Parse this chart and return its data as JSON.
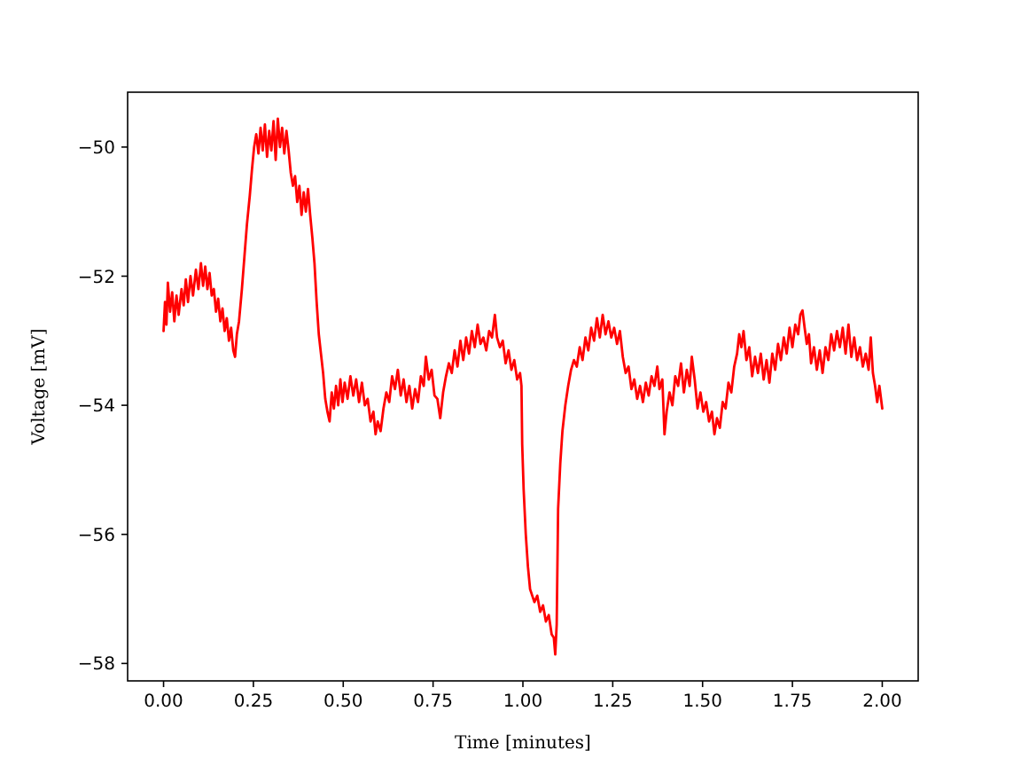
{
  "chart_data": {
    "type": "line",
    "xlabel": "Time [minutes]",
    "ylabel": "Voltage [mV]",
    "color": "#ff0000",
    "xlim": [
      -0.1,
      2.1
    ],
    "ylim": [
      -58.27,
      -49.15
    ],
    "xticks": [
      {
        "value": 0,
        "label": "0.00"
      },
      {
        "value": 0.25,
        "label": "0.25"
      },
      {
        "value": 0.5,
        "label": "0.50"
      },
      {
        "value": 0.75,
        "label": "0.75"
      },
      {
        "value": 1,
        "label": "1.00"
      },
      {
        "value": 1.25,
        "label": "1.25"
      },
      {
        "value": 1.5,
        "label": "1.50"
      },
      {
        "value": 1.75,
        "label": "1.75"
      },
      {
        "value": 2,
        "label": "2.00"
      }
    ],
    "yticks": [
      {
        "value": -58,
        "label": "−58"
      },
      {
        "value": -56,
        "label": "−56"
      },
      {
        "value": -54,
        "label": "−54"
      },
      {
        "value": -52,
        "label": "−52"
      },
      {
        "value": -50,
        "label": "−50"
      }
    ],
    "x": [
      0,
      0.004,
      0.008,
      0.012,
      0.018,
      0.024,
      0.03,
      0.036,
      0.042,
      0.05,
      0.056,
      0.062,
      0.068,
      0.075,
      0.082,
      0.09,
      0.097,
      0.104,
      0.11,
      0.116,
      0.122,
      0.128,
      0.134,
      0.14,
      0.146,
      0.152,
      0.158,
      0.164,
      0.17,
      0.176,
      0.182,
      0.188,
      0.194,
      0.199,
      0.204,
      0.21,
      0.218,
      0.225,
      0.232,
      0.24,
      0.246,
      0.252,
      0.258,
      0.264,
      0.27,
      0.276,
      0.282,
      0.288,
      0.294,
      0.3,
      0.306,
      0.312,
      0.318,
      0.324,
      0.33,
      0.336,
      0.342,
      0.348,
      0.354,
      0.36,
      0.366,
      0.372,
      0.378,
      0.384,
      0.39,
      0.396,
      0.402,
      0.408,
      0.414,
      0.42,
      0.426,
      0.432,
      0.438,
      0.444,
      0.45,
      0.456,
      0.462,
      0.468,
      0.474,
      0.48,
      0.486,
      0.492,
      0.498,
      0.504,
      0.512,
      0.52,
      0.528,
      0.536,
      0.544,
      0.552,
      0.56,
      0.568,
      0.576,
      0.584,
      0.59,
      0.596,
      0.604,
      0.612,
      0.62,
      0.628,
      0.636,
      0.644,
      0.652,
      0.66,
      0.668,
      0.676,
      0.684,
      0.692,
      0.7,
      0.708,
      0.716,
      0.724,
      0.73,
      0.738,
      0.746,
      0.754,
      0.762,
      0.77,
      0.778,
      0.786,
      0.794,
      0.802,
      0.81,
      0.818,
      0.826,
      0.834,
      0.842,
      0.85,
      0.858,
      0.866,
      0.874,
      0.882,
      0.89,
      0.898,
      0.906,
      0.914,
      0.922,
      0.928,
      0.936,
      0.944,
      0.952,
      0.96,
      0.968,
      0.976,
      0.984,
      0.992,
      0.996,
      0.998,
      1.002,
      1.008,
      1.014,
      1.02,
      1.026,
      1.032,
      1.04,
      1.048,
      1.056,
      1.064,
      1.072,
      1.08,
      1.086,
      1.09,
      1.094,
      1.098,
      1.104,
      1.11,
      1.118,
      1.126,
      1.134,
      1.142,
      1.15,
      1.158,
      1.166,
      1.174,
      1.182,
      1.19,
      1.198,
      1.206,
      1.214,
      1.222,
      1.23,
      1.238,
      1.246,
      1.254,
      1.262,
      1.27,
      1.278,
      1.286,
      1.294,
      1.302,
      1.31,
      1.318,
      1.326,
      1.334,
      1.342,
      1.35,
      1.358,
      1.366,
      1.374,
      1.38,
      1.388,
      1.394,
      1.4,
      1.408,
      1.416,
      1.424,
      1.432,
      1.44,
      1.448,
      1.456,
      1.464,
      1.47,
      1.478,
      1.486,
      1.494,
      1.502,
      1.51,
      1.518,
      1.526,
      1.533,
      1.54,
      1.548,
      1.556,
      1.564,
      1.572,
      1.58,
      1.588,
      1.596,
      1.602,
      1.608,
      1.614,
      1.622,
      1.63,
      1.638,
      1.646,
      1.654,
      1.662,
      1.67,
      1.678,
      1.686,
      1.694,
      1.702,
      1.71,
      1.718,
      1.726,
      1.734,
      1.742,
      1.75,
      1.758,
      1.766,
      1.772,
      1.778,
      1.784,
      1.79,
      1.796,
      1.802,
      1.81,
      1.818,
      1.826,
      1.834,
      1.842,
      1.85,
      1.858,
      1.866,
      1.874,
      1.882,
      1.89,
      1.898,
      1.906,
      1.914,
      1.922,
      1.93,
      1.938,
      1.946,
      1.954,
      1.962,
      1.968,
      1.974,
      1.98,
      1.986,
      1.992,
      2
    ],
    "values": [
      -52.85,
      -52.4,
      -52.75,
      -52.1,
      -52.55,
      -52.25,
      -52.7,
      -52.3,
      -52.6,
      -52.2,
      -52.45,
      -52.05,
      -52.4,
      -52,
      -52.3,
      -51.9,
      -52.2,
      -51.8,
      -52.15,
      -51.85,
      -52.2,
      -51.95,
      -52.3,
      -52.2,
      -52.55,
      -52.35,
      -52.7,
      -52.5,
      -52.85,
      -52.65,
      -53,
      -52.8,
      -53.15,
      -53.25,
      -52.9,
      -52.7,
      -52.2,
      -51.7,
      -51.2,
      -50.75,
      -50.35,
      -50,
      -49.8,
      -50.1,
      -49.7,
      -50.05,
      -49.65,
      -50.15,
      -49.75,
      -50.05,
      -49.6,
      -50.2,
      -49.56,
      -50,
      -49.7,
      -50.1,
      -49.75,
      -50.05,
      -50.4,
      -50.6,
      -50.45,
      -50.85,
      -50.6,
      -51.05,
      -50.7,
      -51,
      -50.65,
      -51.05,
      -51.4,
      -51.8,
      -52.4,
      -52.9,
      -53.2,
      -53.5,
      -53.9,
      -54.1,
      -54.25,
      -53.8,
      -54.05,
      -53.7,
      -54,
      -53.6,
      -53.95,
      -53.65,
      -53.9,
      -53.55,
      -53.85,
      -53.6,
      -53.95,
      -53.65,
      -54,
      -53.9,
      -54.25,
      -54.1,
      -54.45,
      -54.25,
      -54.4,
      -54.05,
      -53.8,
      -53.95,
      -53.55,
      -53.75,
      -53.45,
      -53.85,
      -53.6,
      -53.95,
      -53.7,
      -54.05,
      -53.75,
      -53.95,
      -53.55,
      -53.7,
      -53.25,
      -53.6,
      -53.45,
      -53.85,
      -53.9,
      -54.2,
      -53.8,
      -53.55,
      -53.35,
      -53.5,
      -53.15,
      -53.4,
      -53,
      -53.3,
      -52.95,
      -53.2,
      -52.85,
      -53.1,
      -52.75,
      -53.05,
      -52.95,
      -53.15,
      -52.85,
      -52.95,
      -52.6,
      -52.95,
      -53.1,
      -53,
      -53.35,
      -53.15,
      -53.45,
      -53.3,
      -53.6,
      -53.5,
      -53.7,
      -54.6,
      -55.3,
      -56,
      -56.5,
      -56.85,
      -56.95,
      -57.05,
      -56.95,
      -57.2,
      -57.1,
      -57.35,
      -57.25,
      -57.55,
      -57.6,
      -57.86,
      -57.4,
      -55.6,
      -54.9,
      -54.4,
      -54,
      -53.7,
      -53.45,
      -53.3,
      -53.4,
      -53.1,
      -53.3,
      -52.95,
      -53.15,
      -52.8,
      -53,
      -52.65,
      -52.95,
      -52.6,
      -52.9,
      -52.7,
      -52.95,
      -52.8,
      -53.05,
      -52.85,
      -53.25,
      -53.5,
      -53.4,
      -53.75,
      -53.6,
      -53.9,
      -53.7,
      -53.95,
      -53.65,
      -53.85,
      -53.55,
      -53.7,
      -53.4,
      -53.75,
      -53.6,
      -54.45,
      -54.1,
      -53.8,
      -54,
      -53.55,
      -53.7,
      -53.35,
      -53.8,
      -53.45,
      -53.7,
      -53.25,
      -53.6,
      -54.05,
      -53.8,
      -54.1,
      -53.95,
      -54.25,
      -54.1,
      -54.45,
      -54.2,
      -54.35,
      -53.95,
      -54.05,
      -53.65,
      -53.8,
      -53.4,
      -53.2,
      -52.9,
      -53.1,
      -52.85,
      -53.3,
      -53.1,
      -53.55,
      -53.25,
      -53.5,
      -53.2,
      -53.6,
      -53.3,
      -53.65,
      -53.2,
      -53.45,
      -53.05,
      -53.3,
      -52.95,
      -53.2,
      -52.8,
      -53.1,
      -52.75,
      -52.9,
      -52.6,
      -52.53,
      -52.8,
      -53.05,
      -52.9,
      -53.35,
      -53.1,
      -53.45,
      -53.15,
      -53.5,
      -53.1,
      -53.3,
      -52.9,
      -53.15,
      -52.85,
      -53.1,
      -52.8,
      -53.2,
      -52.75,
      -53.25,
      -52.95,
      -53.3,
      -53.1,
      -53.4,
      -53.2,
      -53.45,
      -52.95,
      -53.5,
      -53.7,
      -53.95,
      -53.7,
      -54.05
    ]
  }
}
